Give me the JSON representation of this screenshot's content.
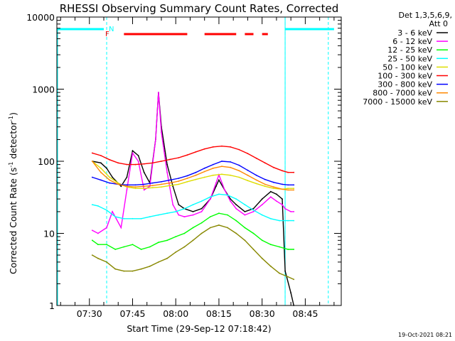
{
  "chart_data": {
    "type": "line",
    "title": "RHESSI Observing Summary Count Rates, Corrected",
    "xlabel": "Start Time (29-Sep-12 07:18:42)",
    "ylabel_main": "Corrected Count Rate (s",
    "ylabel_sup1": "-1",
    "ylabel_mid": " detector",
    "ylabel_sup2": "-1",
    "ylabel_end": ")",
    "yscale": "log",
    "ylim": [
      1,
      10000
    ],
    "xlim": [
      "07:18:42",
      "08:57:30"
    ],
    "x_ticks": [
      "07:30",
      "07:45",
      "08:00",
      "08:15",
      "08:30",
      "08:45"
    ],
    "y_ticks": [
      "1",
      "10",
      "100",
      "1000",
      "10000"
    ],
    "legend_header": [
      "Det 1,3,5,6,9,",
      "Att 0"
    ],
    "legend_position": "right",
    "footer_date": "19-Oct-2021 08:21",
    "annotations": {
      "N": "N",
      "F": "F"
    },
    "night_markers": [
      "07:36",
      "08:38",
      "08:53"
    ],
    "flare_flag_segments": [
      [
        "07:42",
        "08:04"
      ],
      [
        "08:10",
        "08:21"
      ],
      [
        "08:24",
        "08:27"
      ],
      [
        "08:30",
        "08:32"
      ]
    ],
    "saa_top_segments": [
      [
        "07:18:42",
        "07:35"
      ],
      [
        "08:38",
        "08:55"
      ]
    ],
    "series": [
      {
        "name": "3 - 6 keV",
        "color": "#000000",
        "points": [
          [
            "07:31",
            100
          ],
          [
            "07:34",
            95
          ],
          [
            "07:36",
            80
          ],
          [
            "07:38",
            60
          ],
          [
            "07:41",
            45
          ],
          [
            "07:43",
            60
          ],
          [
            "07:45",
            140
          ],
          [
            "07:47",
            120
          ],
          [
            "07:49",
            70
          ],
          [
            "07:51",
            50
          ],
          [
            "07:53",
            200
          ],
          [
            "07:54",
            900
          ],
          [
            "07:55",
            300
          ],
          [
            "07:57",
            90
          ],
          [
            "07:59",
            45
          ],
          [
            "08:01",
            25
          ],
          [
            "08:03",
            22
          ],
          [
            "08:06",
            20
          ],
          [
            "08:09",
            22
          ],
          [
            "08:12",
            30
          ],
          [
            "08:14",
            45
          ],
          [
            "08:15",
            55
          ],
          [
            "08:17",
            40
          ],
          [
            "08:19",
            30
          ],
          [
            "08:21",
            25
          ],
          [
            "08:24",
            20
          ],
          [
            "08:27",
            22
          ],
          [
            "08:30",
            30
          ],
          [
            "08:33",
            38
          ],
          [
            "08:35",
            35
          ],
          [
            "08:37",
            30
          ],
          [
            "08:38",
            3
          ],
          [
            "08:40",
            1.5
          ],
          [
            "08:41",
            1
          ]
        ]
      },
      {
        "name": "6 - 12 keV",
        "color": "#ff00ff",
        "points": [
          [
            "07:31",
            11
          ],
          [
            "07:33",
            10
          ],
          [
            "07:36",
            12
          ],
          [
            "07:38",
            20
          ],
          [
            "07:41",
            12
          ],
          [
            "07:43",
            40
          ],
          [
            "07:45",
            130
          ],
          [
            "07:47",
            100
          ],
          [
            "07:49",
            40
          ],
          [
            "07:51",
            45
          ],
          [
            "07:53",
            200
          ],
          [
            "07:54",
            900
          ],
          [
            "07:55",
            250
          ],
          [
            "07:57",
            70
          ],
          [
            "07:59",
            25
          ],
          [
            "08:01",
            18
          ],
          [
            "08:03",
            17
          ],
          [
            "08:06",
            18
          ],
          [
            "08:09",
            20
          ],
          [
            "08:12",
            30
          ],
          [
            "08:14",
            50
          ],
          [
            "08:15",
            65
          ],
          [
            "08:17",
            40
          ],
          [
            "08:19",
            28
          ],
          [
            "08:21",
            22
          ],
          [
            "08:24",
            18
          ],
          [
            "08:27",
            20
          ],
          [
            "08:30",
            25
          ],
          [
            "08:33",
            32
          ],
          [
            "08:35",
            28
          ],
          [
            "08:37",
            25
          ],
          [
            "08:38",
            22
          ],
          [
            "08:40",
            20
          ],
          [
            "08:41",
            20
          ]
        ]
      },
      {
        "name": "12 - 25 keV",
        "color": "#00ff00",
        "points": [
          [
            "07:31",
            8
          ],
          [
            "07:33",
            7
          ],
          [
            "07:36",
            7
          ],
          [
            "07:39",
            6
          ],
          [
            "07:42",
            6.5
          ],
          [
            "07:45",
            7
          ],
          [
            "07:48",
            6
          ],
          [
            "07:51",
            6.5
          ],
          [
            "07:54",
            7.5
          ],
          [
            "07:57",
            8
          ],
          [
            "08:00",
            9
          ],
          [
            "08:03",
            10
          ],
          [
            "08:06",
            12
          ],
          [
            "08:09",
            14
          ],
          [
            "08:12",
            17
          ],
          [
            "08:15",
            19
          ],
          [
            "08:18",
            18
          ],
          [
            "08:21",
            15
          ],
          [
            "08:24",
            12
          ],
          [
            "08:27",
            10
          ],
          [
            "08:30",
            8
          ],
          [
            "08:33",
            7
          ],
          [
            "08:36",
            6.5
          ],
          [
            "08:39",
            6
          ],
          [
            "08:41",
            6
          ]
        ]
      },
      {
        "name": "25 - 50 keV",
        "color": "#00ffff",
        "points": [
          [
            "07:31",
            25
          ],
          [
            "07:33",
            24
          ],
          [
            "07:36",
            21
          ],
          [
            "07:39",
            17
          ],
          [
            "07:42",
            16
          ],
          [
            "07:45",
            16
          ],
          [
            "07:48",
            16
          ],
          [
            "07:51",
            17
          ],
          [
            "07:54",
            18
          ],
          [
            "07:57",
            19
          ],
          [
            "08:00",
            20
          ],
          [
            "08:03",
            22
          ],
          [
            "08:06",
            25
          ],
          [
            "08:09",
            28
          ],
          [
            "08:12",
            32
          ],
          [
            "08:15",
            35
          ],
          [
            "08:18",
            34
          ],
          [
            "08:21",
            30
          ],
          [
            "08:24",
            25
          ],
          [
            "08:27",
            21
          ],
          [
            "08:30",
            18
          ],
          [
            "08:33",
            16
          ],
          [
            "08:36",
            15
          ],
          [
            "08:39",
            15
          ],
          [
            "08:41",
            15
          ]
        ]
      },
      {
        "name": "50 - 100 keV",
        "color": "#dddd00",
        "points": [
          [
            "07:31",
            100
          ],
          [
            "07:34",
            80
          ],
          [
            "07:37",
            60
          ],
          [
            "07:40",
            50
          ],
          [
            "07:43",
            44
          ],
          [
            "07:46",
            42
          ],
          [
            "07:49",
            42
          ],
          [
            "07:52",
            43
          ],
          [
            "07:55",
            44
          ],
          [
            "07:58",
            46
          ],
          [
            "08:01",
            48
          ],
          [
            "08:04",
            52
          ],
          [
            "08:07",
            56
          ],
          [
            "08:10",
            60
          ],
          [
            "08:13",
            64
          ],
          [
            "08:16",
            66
          ],
          [
            "08:19",
            64
          ],
          [
            "08:22",
            60
          ],
          [
            "08:25",
            54
          ],
          [
            "08:28",
            49
          ],
          [
            "08:31",
            45
          ],
          [
            "08:34",
            42
          ],
          [
            "08:37",
            41
          ],
          [
            "08:39",
            42
          ],
          [
            "08:41",
            42
          ]
        ]
      },
      {
        "name": "100 - 300 keV",
        "color": "#ff0000",
        "points": [
          [
            "07:31",
            130
          ],
          [
            "07:34",
            120
          ],
          [
            "07:37",
            105
          ],
          [
            "07:40",
            95
          ],
          [
            "07:43",
            90
          ],
          [
            "07:46",
            90
          ],
          [
            "07:49",
            92
          ],
          [
            "07:52",
            95
          ],
          [
            "07:55",
            100
          ],
          [
            "07:58",
            106
          ],
          [
            "08:01",
            112
          ],
          [
            "08:04",
            122
          ],
          [
            "08:07",
            135
          ],
          [
            "08:10",
            148
          ],
          [
            "08:13",
            158
          ],
          [
            "08:16",
            162
          ],
          [
            "08:19",
            158
          ],
          [
            "08:22",
            145
          ],
          [
            "08:25",
            128
          ],
          [
            "08:28",
            110
          ],
          [
            "08:31",
            95
          ],
          [
            "08:34",
            82
          ],
          [
            "08:37",
            74
          ],
          [
            "08:39",
            70
          ],
          [
            "08:41",
            70
          ]
        ]
      },
      {
        "name": "300 - 800 keV",
        "color": "#0000ff",
        "points": [
          [
            "07:31",
            60
          ],
          [
            "07:34",
            55
          ],
          [
            "07:37",
            50
          ],
          [
            "07:40",
            48
          ],
          [
            "07:43",
            47
          ],
          [
            "07:46",
            47
          ],
          [
            "07:49",
            48
          ],
          [
            "07:52",
            50
          ],
          [
            "07:55",
            52
          ],
          [
            "07:58",
            55
          ],
          [
            "08:01",
            58
          ],
          [
            "08:04",
            63
          ],
          [
            "08:07",
            70
          ],
          [
            "08:10",
            80
          ],
          [
            "08:13",
            90
          ],
          [
            "08:16",
            100
          ],
          [
            "08:19",
            98
          ],
          [
            "08:22",
            88
          ],
          [
            "08:25",
            75
          ],
          [
            "08:28",
            64
          ],
          [
            "08:31",
            56
          ],
          [
            "08:34",
            51
          ],
          [
            "08:37",
            48
          ],
          [
            "08:39",
            47
          ],
          [
            "08:41",
            47
          ]
        ]
      },
      {
        "name": "800 - 7000 keV",
        "color": "#ff8800",
        "points": [
          [
            "07:31",
            100
          ],
          [
            "07:34",
            70
          ],
          [
            "07:37",
            55
          ],
          [
            "07:40",
            48
          ],
          [
            "07:43",
            45
          ],
          [
            "07:46",
            44
          ],
          [
            "07:49",
            45
          ],
          [
            "07:52",
            46
          ],
          [
            "07:55",
            48
          ],
          [
            "07:58",
            50
          ],
          [
            "08:01",
            53
          ],
          [
            "08:04",
            58
          ],
          [
            "08:07",
            64
          ],
          [
            "08:10",
            72
          ],
          [
            "08:13",
            80
          ],
          [
            "08:16",
            85
          ],
          [
            "08:19",
            82
          ],
          [
            "08:22",
            74
          ],
          [
            "08:25",
            64
          ],
          [
            "08:28",
            55
          ],
          [
            "08:31",
            48
          ],
          [
            "08:34",
            44
          ],
          [
            "08:37",
            41
          ],
          [
            "08:39",
            40
          ],
          [
            "08:41",
            40
          ]
        ]
      },
      {
        "name": "7000 - 15000 keV",
        "color": "#888800",
        "points": [
          [
            "07:31",
            5
          ],
          [
            "07:33",
            4.5
          ],
          [
            "07:36",
            4
          ],
          [
            "07:39",
            3.2
          ],
          [
            "07:42",
            3
          ],
          [
            "07:45",
            3
          ],
          [
            "07:48",
            3.2
          ],
          [
            "07:51",
            3.5
          ],
          [
            "07:54",
            4
          ],
          [
            "07:57",
            4.5
          ],
          [
            "08:00",
            5.5
          ],
          [
            "08:03",
            6.5
          ],
          [
            "08:06",
            8
          ],
          [
            "08:09",
            10
          ],
          [
            "08:12",
            12
          ],
          [
            "08:15",
            13
          ],
          [
            "08:18",
            12
          ],
          [
            "08:21",
            10
          ],
          [
            "08:24",
            8
          ],
          [
            "08:27",
            6
          ],
          [
            "08:30",
            4.5
          ],
          [
            "08:33",
            3.5
          ],
          [
            "08:36",
            2.8
          ],
          [
            "08:39",
            2.5
          ],
          [
            "08:41",
            2.3
          ]
        ]
      }
    ]
  }
}
